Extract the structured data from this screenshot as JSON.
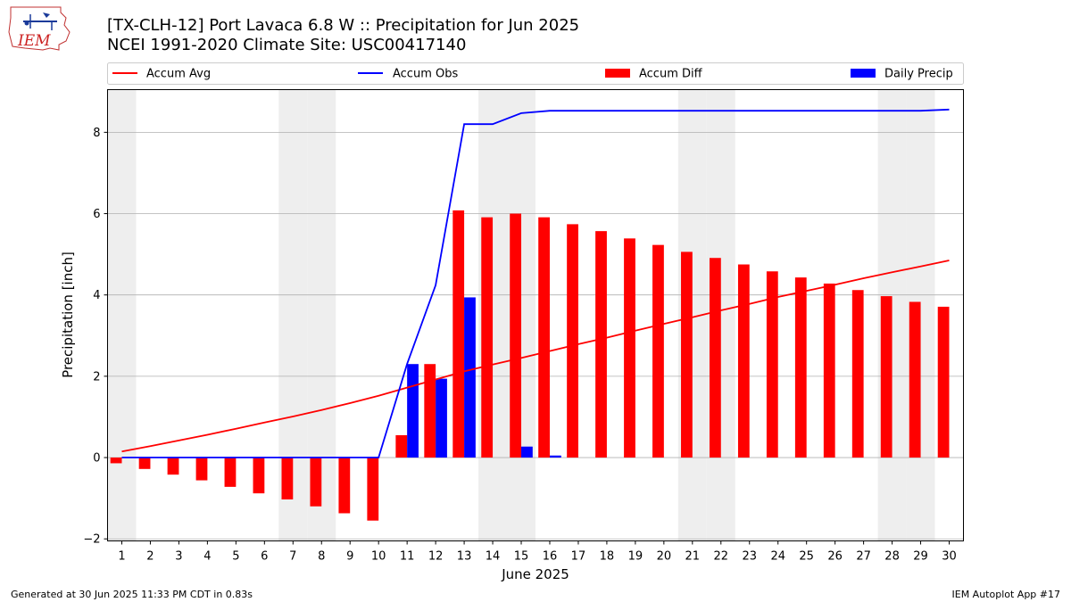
{
  "header": {
    "title_line1": "[TX-CLH-12] Port Lavaca 6.8 W :: Precipitation for Jun 2025",
    "title_line2": "NCEI 1991-2020 Climate Site: USC00417140"
  },
  "logo": {
    "text": "IEM",
    "icon": "iem-logo-icon"
  },
  "footer": {
    "left": "Generated at 30 Jun 2025 11:33 PM CDT in 0.83s",
    "right": "IEM Autoplot App #17"
  },
  "colors": {
    "accum_avg": "#ff0000",
    "accum_obs": "#0000ff",
    "accum_diff": "#ff0000",
    "daily_precip": "#0000ff",
    "weekend_band": "#eeeeee",
    "grid": "#b0b0b0"
  },
  "chart_data": {
    "type": "bar",
    "xlabel": "June 2025",
    "ylabel": "Precipitation [inch]",
    "ylim": [
      -2.05,
      9.05
    ],
    "xlim": [
      0.5,
      30.5
    ],
    "yticks": [
      -2,
      0,
      2,
      4,
      6,
      8
    ],
    "grid": "horizontal",
    "legend_position": "top",
    "legend": [
      "Accum Avg",
      "Accum Obs",
      "Accum Diff",
      "Daily Precip"
    ],
    "weekend_days": [
      1,
      7,
      8,
      14,
      15,
      21,
      22,
      28,
      29
    ],
    "days": [
      1,
      2,
      3,
      4,
      5,
      6,
      7,
      8,
      9,
      10,
      11,
      12,
      13,
      14,
      15,
      16,
      17,
      18,
      19,
      20,
      21,
      22,
      23,
      24,
      25,
      26,
      27,
      28,
      29,
      30
    ],
    "accum_avg": [
      0.15,
      0.28,
      0.42,
      0.56,
      0.71,
      0.86,
      1.01,
      1.17,
      1.34,
      1.52,
      1.72,
      1.92,
      2.12,
      2.29,
      2.45,
      2.62,
      2.79,
      2.95,
      3.12,
      3.29,
      3.45,
      3.62,
      3.78,
      3.95,
      4.1,
      4.25,
      4.41,
      4.56,
      4.7,
      4.85
    ],
    "accum_obs": [
      0,
      0,
      0,
      0,
      0,
      0,
      0,
      0,
      0,
      0,
      2.3,
      4.24,
      8.2,
      8.2,
      8.47,
      8.53,
      8.53,
      8.53,
      8.53,
      8.53,
      8.53,
      8.53,
      8.53,
      8.53,
      8.53,
      8.53,
      8.53,
      8.53,
      8.53,
      8.56
    ],
    "accum_diff": [
      -0.14,
      -0.28,
      -0.42,
      -0.56,
      -0.72,
      -0.88,
      -1.03,
      -1.2,
      -1.37,
      -1.55,
      0.55,
      2.3,
      6.08,
      5.91,
      6.0,
      5.91,
      5.74,
      5.57,
      5.39,
      5.23,
      5.06,
      4.91,
      4.75,
      4.58,
      4.43,
      4.28,
      4.12,
      3.97,
      3.83,
      3.71
    ],
    "daily_precip": [
      0,
      0,
      0,
      0,
      0,
      0,
      0,
      0,
      0,
      0,
      2.3,
      1.94,
      3.94,
      0,
      0.27,
      0.05,
      0,
      0,
      0,
      0,
      0,
      0,
      0,
      0,
      0,
      0,
      0,
      0,
      0,
      0
    ]
  }
}
